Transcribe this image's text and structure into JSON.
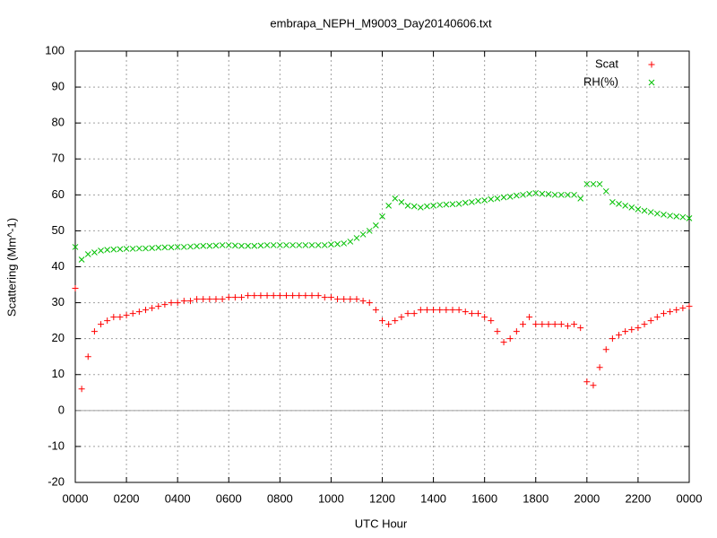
{
  "chart_data": {
    "type": "scatter",
    "title": "embrapa_NEPH_M9003_Day20140606.txt",
    "x_label": "UTC Hour",
    "y_label": "Scattering (Mm^-1)",
    "xlim": [
      0,
      24
    ],
    "xticks": [
      {
        "value": 0,
        "label": "0000"
      },
      {
        "value": 2,
        "label": "0200"
      },
      {
        "value": 4,
        "label": "0400"
      },
      {
        "value": 6,
        "label": "0600"
      },
      {
        "value": 8,
        "label": "0800"
      },
      {
        "value": 10,
        "label": "1000"
      },
      {
        "value": 12,
        "label": "1200"
      },
      {
        "value": 14,
        "label": "1400"
      },
      {
        "value": 16,
        "label": "1600"
      },
      {
        "value": 18,
        "label": "1800"
      },
      {
        "value": 20,
        "label": "2000"
      },
      {
        "value": 22,
        "label": "2200"
      },
      {
        "value": 24,
        "label": "0000"
      }
    ],
    "ylim": [
      -20,
      100
    ],
    "yticks": [
      -20,
      -10,
      0,
      10,
      20,
      30,
      40,
      50,
      60,
      70,
      80,
      90,
      100
    ],
    "grid": true,
    "zeroaxis": true,
    "legend": "top-right",
    "x": [
      0,
      0.25,
      0.5,
      0.75,
      1,
      1.25,
      1.5,
      1.75,
      2,
      2.25,
      2.5,
      2.75,
      3,
      3.25,
      3.5,
      3.75,
      4,
      4.25,
      4.5,
      4.75,
      5,
      5.25,
      5.5,
      5.75,
      6,
      6.25,
      6.5,
      6.75,
      7,
      7.25,
      7.5,
      7.75,
      8,
      8.25,
      8.5,
      8.75,
      9,
      9.25,
      9.5,
      9.75,
      10,
      10.25,
      10.5,
      10.75,
      11,
      11.25,
      11.5,
      11.75,
      12,
      12.25,
      12.5,
      12.75,
      13,
      13.25,
      13.5,
      13.75,
      14,
      14.25,
      14.5,
      14.75,
      15,
      15.25,
      15.5,
      15.75,
      16,
      16.25,
      16.5,
      16.75,
      17,
      17.25,
      17.5,
      17.75,
      18,
      18.25,
      18.5,
      18.75,
      19,
      19.25,
      19.5,
      19.75,
      20,
      20.25,
      20.5,
      20.75,
      21,
      21.25,
      21.5,
      21.75,
      22,
      22.25,
      22.5,
      22.75,
      23,
      23.25,
      23.5,
      23.75,
      24
    ],
    "series": [
      {
        "name": "Scat",
        "color": "#ff0000",
        "marker": "+",
        "values": [
          34,
          6,
          15,
          22,
          24,
          25,
          26,
          26,
          26.5,
          27,
          27.5,
          28,
          28.5,
          29,
          29.5,
          30,
          30,
          30.5,
          30.5,
          31,
          31,
          31,
          31,
          31,
          31.5,
          31.5,
          31.5,
          32,
          32,
          32,
          32,
          32,
          32,
          32,
          32,
          32,
          32,
          32,
          32,
          31.5,
          31.5,
          31,
          31,
          31,
          31,
          30.5,
          30,
          28,
          25,
          24,
          25,
          26,
          27,
          27,
          28,
          28,
          28,
          28,
          28,
          28,
          28,
          27.5,
          27,
          27,
          26,
          25,
          22,
          19,
          20,
          22,
          24,
          26,
          24,
          24,
          24,
          24,
          24,
          23.5,
          24,
          23,
          8,
          7,
          12,
          17,
          20,
          21,
          22,
          22.5,
          23,
          24,
          25,
          26,
          27,
          27.5,
          28,
          28.5,
          29
        ]
      },
      {
        "name": "RH(%)",
        "color": "#00c000",
        "marker": "x",
        "values": [
          45.5,
          42,
          43.5,
          44,
          44.5,
          44.7,
          44.8,
          44.9,
          45,
          45,
          45.1,
          45.1,
          45.2,
          45.3,
          45.4,
          45.4,
          45.5,
          45.5,
          45.6,
          45.7,
          45.8,
          45.8,
          45.9,
          46,
          46,
          45.9,
          45.8,
          45.8,
          45.8,
          45.9,
          46,
          46,
          46,
          46,
          46,
          46,
          46,
          46,
          46,
          46,
          46.2,
          46.3,
          46.5,
          47,
          48,
          49,
          50,
          51.5,
          54,
          57,
          59,
          58,
          57,
          56.8,
          56.5,
          56.8,
          57,
          57.2,
          57.3,
          57.4,
          57.5,
          57.8,
          58,
          58.3,
          58.5,
          58.8,
          59,
          59.3,
          59.5,
          59.8,
          60,
          60.3,
          60.5,
          60.3,
          60.2,
          60,
          60,
          60,
          60,
          59,
          63,
          63,
          63,
          61,
          58,
          57.5,
          57,
          56.5,
          56,
          55.6,
          55.2,
          54.8,
          54.5,
          54.2,
          54,
          53.8,
          53.5
        ]
      }
    ]
  }
}
